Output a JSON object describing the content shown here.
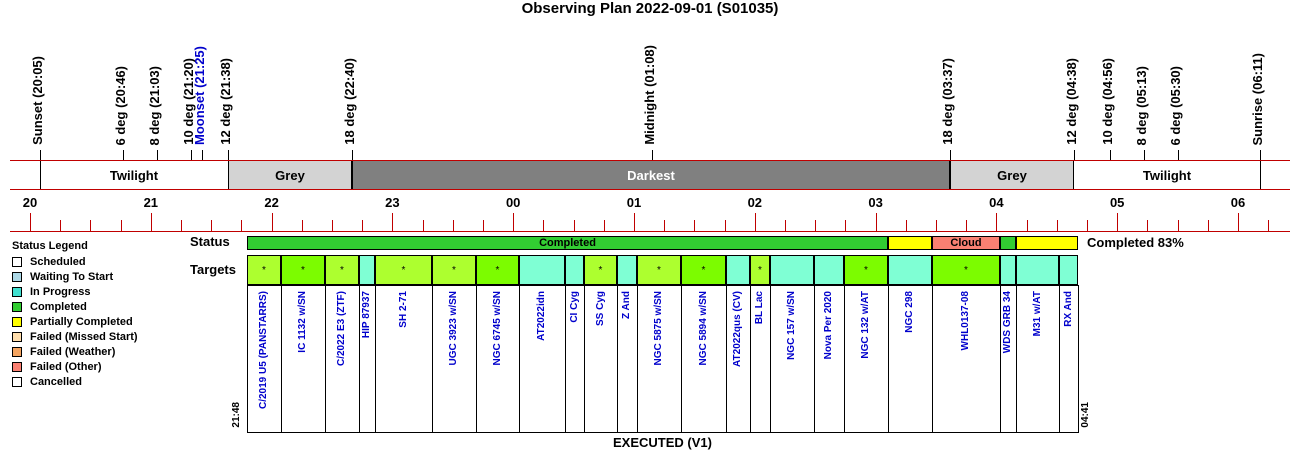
{
  "title": "Observing Plan 2022-09-01 (S01035)",
  "events": [
    {
      "label": "Sunset (20:05)",
      "color": "#000000",
      "x": 40
    },
    {
      "label": "6 deg (20:46)",
      "color": "#000000",
      "x": 123
    },
    {
      "label": "8 deg (21:03)",
      "color": "#000000",
      "x": 157
    },
    {
      "label": "10 deg (21:20)",
      "color": "#000000",
      "x": 191
    },
    {
      "label": "Moonset (21:25)",
      "color": "#0000cc",
      "x": 202
    },
    {
      "label": "12 deg (21:38)",
      "color": "#000000",
      "x": 228
    },
    {
      "label": "18 deg (22:40)",
      "color": "#000000",
      "x": 352
    },
    {
      "label": "Midnight (01:08)",
      "color": "#000000",
      "x": 652
    },
    {
      "label": "18 deg (03:37)",
      "color": "#000000",
      "x": 950
    },
    {
      "label": "12 deg (04:38)",
      "color": "#000000",
      "x": 1074
    },
    {
      "label": "10 deg (04:56)",
      "color": "#000000",
      "x": 1110
    },
    {
      "label": "8 deg (05:13)",
      "color": "#000000",
      "x": 1144
    },
    {
      "label": "6 deg (05:30)",
      "color": "#000000",
      "x": 1178
    },
    {
      "label": "Sunrise (06:11)",
      "color": "#000000",
      "x": 1260
    }
  ],
  "segments": [
    {
      "label": "Twilight",
      "color": "#ffffff",
      "text": "#000000"
    },
    {
      "label": "Grey",
      "color": "#d3d3d3",
      "text": "#000000"
    },
    {
      "label": "Darkest",
      "color": "#808080",
      "text": "#ffffff"
    },
    {
      "label": "Grey",
      "color": "#d3d3d3",
      "text": "#000000"
    },
    {
      "label": "Twilight",
      "color": "#ffffff",
      "text": "#000000"
    }
  ],
  "hours": [
    "20",
    "21",
    "22",
    "23",
    "00",
    "01",
    "02",
    "03",
    "04",
    "05",
    "06"
  ],
  "legend": {
    "title": "Status Legend",
    "items": [
      {
        "label": "Scheduled",
        "color": "#ffffff"
      },
      {
        "label": "Waiting To Start",
        "color": "#add8e6"
      },
      {
        "label": "In Progress",
        "color": "#40e0d0"
      },
      {
        "label": "Completed",
        "color": "#32cd32"
      },
      {
        "label": "Partially Completed",
        "color": "#ffff00"
      },
      {
        "label": "Failed (Missed Start)",
        "color": "#ffdead"
      },
      {
        "label": "Failed (Weather)",
        "color": "#f4a460"
      },
      {
        "label": "Failed (Other)",
        "color": "#fa8072"
      },
      {
        "label": "Cancelled",
        "color": "#ffffff"
      }
    ]
  },
  "rows": {
    "status": "Status",
    "targets": "Targets"
  },
  "status_segments": [
    {
      "label": "Completed",
      "color": "#32cd32"
    },
    {
      "label": "",
      "color": "#ffff00"
    },
    {
      "label": "Cloud",
      "color": "#fa8072"
    },
    {
      "label": "",
      "color": "#32cd32"
    },
    {
      "label": "",
      "color": "#ffff00"
    }
  ],
  "status_summary": "Completed 83%",
  "targets": [
    {
      "name": "C/2019 U5 (PANSTARRS)",
      "color": "#adff2f",
      "mark": "*"
    },
    {
      "name": "IC 1132 w/SN",
      "color": "#7cfc00",
      "mark": "*"
    },
    {
      "name": "C/2022 E3 (ZTF)",
      "color": "#adff2f",
      "mark": "*"
    },
    {
      "name": "HIP 87937",
      "color": "#7fffd4",
      "mark": ""
    },
    {
      "name": "SH 2-71",
      "color": "#adff2f",
      "mark": "*"
    },
    {
      "name": "UGC 3923 w/SN",
      "color": "#adff2f",
      "mark": "*"
    },
    {
      "name": "NGC 6745 w/SN",
      "color": "#7cfc00",
      "mark": "*"
    },
    {
      "name": "AT2022idn",
      "color": "#7fffd4",
      "mark": ""
    },
    {
      "name": "CI Cyg",
      "color": "#7fffd4",
      "mark": ""
    },
    {
      "name": "SS Cyg",
      "color": "#adff2f",
      "mark": "*"
    },
    {
      "name": "Z And",
      "color": "#7fffd4",
      "mark": ""
    },
    {
      "name": "NGC 5875 w/SN",
      "color": "#adff2f",
      "mark": "*"
    },
    {
      "name": "NGC 5894 w/SN",
      "color": "#7cfc00",
      "mark": "*"
    },
    {
      "name": "AT2022qus (CV)",
      "color": "#7fffd4",
      "mark": ""
    },
    {
      "name": "BL Lac",
      "color": "#adff2f",
      "mark": "*"
    },
    {
      "name": "NGC 157 w/SN",
      "color": "#7fffd4",
      "mark": ""
    },
    {
      "name": "Nova Per 2020",
      "color": "#7fffd4",
      "mark": ""
    },
    {
      "name": "NGC 132 w/AT",
      "color": "#7cfc00",
      "mark": "*"
    },
    {
      "name": "NGC 298",
      "color": "#7fffd4",
      "mark": ""
    },
    {
      "name": "WHL0137-08",
      "color": "#7cfc00",
      "mark": "*"
    },
    {
      "name": "WDS GRB 34",
      "color": "#7fffd4",
      "mark": ""
    },
    {
      "name": "M31 w/AT",
      "color": "#7fffd4",
      "mark": ""
    },
    {
      "name": "RX And",
      "color": "#7fffd4",
      "mark": ""
    }
  ],
  "start_time": "21:48",
  "end_time": "04:41",
  "footer": "EXECUTED (V1)"
}
